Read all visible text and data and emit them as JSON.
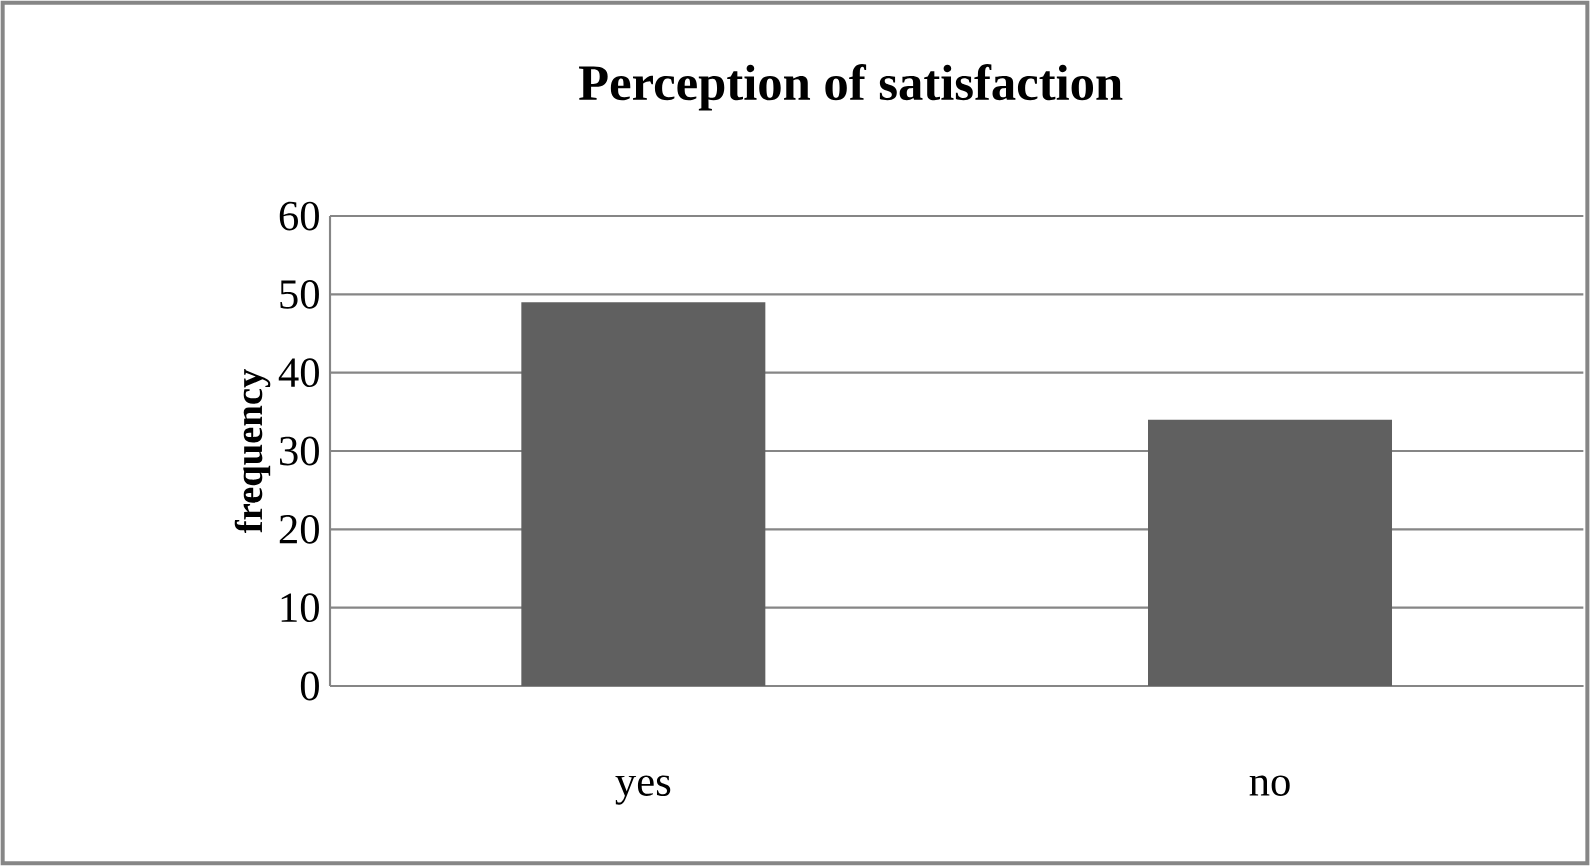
{
  "chart_data": {
    "type": "bar",
    "title": "Perception of satisfaction",
    "ylabel": "frequency",
    "categories": [
      "yes",
      "no"
    ],
    "values": [
      49,
      34
    ],
    "color": "#606060",
    "ylim": [
      0,
      60
    ],
    "yticks": [
      0,
      10,
      20,
      30,
      40,
      50,
      60
    ],
    "grid": "y"
  }
}
